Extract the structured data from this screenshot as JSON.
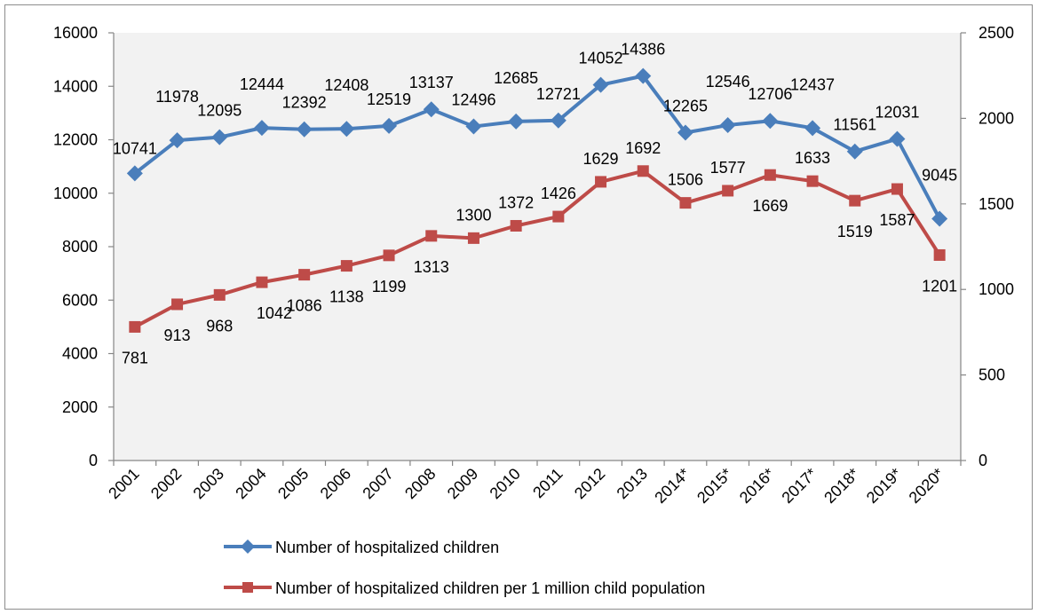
{
  "chart_data": {
    "type": "line",
    "categories": [
      "2001",
      "2002",
      "2003",
      "2004",
      "2005",
      "2006",
      "2007",
      "2008",
      "2009",
      "2010",
      "2011",
      "2012",
      "2013",
      "2014*",
      "2015*",
      "2016*",
      "2017*",
      "2018*",
      "2019*",
      "2020*"
    ],
    "series": [
      {
        "name": "Number of hospitalized children",
        "axis": "left",
        "color": "#4a7ebb",
        "marker": "diamond",
        "values": [
          10741,
          11978,
          12095,
          12444,
          12392,
          12408,
          12519,
          13137,
          12496,
          12685,
          12721,
          14052,
          14386,
          12265,
          12546,
          12706,
          12437,
          11561,
          12031,
          9045
        ]
      },
      {
        "name": "Number of hospitalized children per 1 million child population",
        "axis": "right",
        "color": "#be4b48",
        "marker": "square",
        "values": [
          781,
          913,
          968,
          1042,
          1086,
          1138,
          1199,
          1313,
          1300,
          1372,
          1426,
          1629,
          1692,
          1506,
          1577,
          1669,
          1633,
          1519,
          1587,
          1201
        ]
      }
    ],
    "y_left": {
      "min": 0,
      "max": 16000,
      "step": 2000
    },
    "y_right": {
      "min": 0,
      "max": 2500,
      "step": 500
    },
    "y_left_ticks": [
      "0",
      "2000",
      "4000",
      "6000",
      "8000",
      "10000",
      "12000",
      "14000",
      "16000"
    ],
    "y_right_ticks": [
      "0",
      "500",
      "1000",
      "1500",
      "2000",
      "2500"
    ],
    "grid": false,
    "plot_background": "#f2f2f2",
    "legend_position": "bottom"
  }
}
